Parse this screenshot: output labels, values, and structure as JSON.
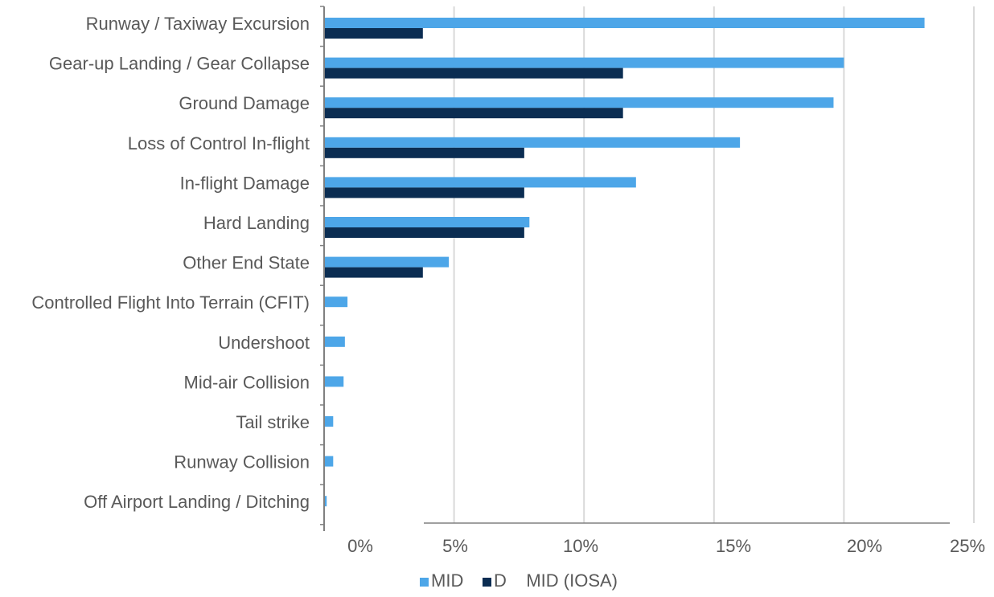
{
  "chart_data": {
    "type": "bar",
    "orientation": "horizontal",
    "categories": [
      "Runway / Taxiway Excursion",
      "Gear-up Landing / Gear Collapse",
      "Ground Damage",
      "Loss of Control In-flight",
      "In-flight Damage",
      "Hard Landing",
      "Other End State",
      "Controlled Flight Into Terrain (CFIT)",
      "Undershoot",
      "Mid-air Collision",
      "Tail strike",
      "Runway Collision",
      "Off Airport Landing / Ditching"
    ],
    "series": [
      {
        "name": "MID",
        "color": "#4da6e8",
        "values": [
          23.1,
          20.0,
          19.6,
          16.0,
          12.0,
          7.9,
          4.8,
          0.9,
          0.8,
          0.75,
          0.35,
          0.35,
          0.1
        ]
      },
      {
        "name": "D    MID (IOSA)",
        "color": "#0b2d52",
        "values": [
          3.8,
          11.5,
          11.5,
          7.7,
          7.7,
          7.7,
          3.8,
          0,
          0,
          0,
          0,
          0,
          0
        ]
      }
    ],
    "xlim": [
      0,
      25
    ],
    "x_tick_values": [
      0,
      5,
      10,
      15,
      20,
      25
    ],
    "x_tick_labels": [
      "0%",
      "5%",
      "10%",
      "15%",
      "20%",
      "25%"
    ],
    "grid": true,
    "legend_position": "bottom",
    "title": "",
    "xlabel": "",
    "ylabel": ""
  }
}
